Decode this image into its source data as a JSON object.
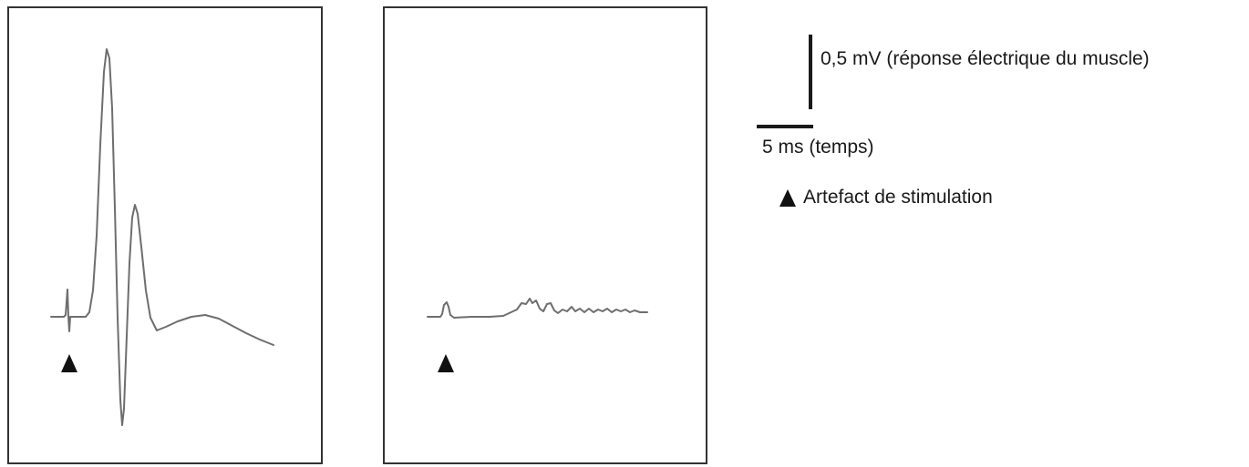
{
  "scale": {
    "amplitude_label": "0,5 mV (réponse électrique du muscle)",
    "time_label": "5 ms (temps)"
  },
  "legend": {
    "icon": "triangle-up",
    "text": "Artefact de stimulation"
  }
}
